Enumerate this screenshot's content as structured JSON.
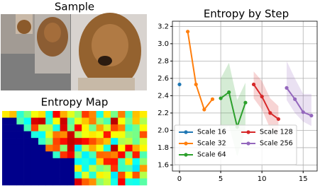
{
  "sample": {
    "title": "Sample"
  },
  "entropy_map": {
    "title": "Entropy Map"
  },
  "chart_data": {
    "type": "line",
    "title": "Entropy by Step",
    "xlim": [
      -0.86,
      16.7
    ],
    "xticks": [
      0,
      5,
      10,
      15
    ],
    "ylim": [
      1.53,
      3.26
    ],
    "yticks": [
      1.6,
      1.8,
      {
        "value": 2,
        "label": "2.0"
      },
      2.2,
      2.4,
      2.6,
      2.8,
      {
        "value": 3,
        "label": "3.0"
      },
      3.2
    ],
    "grid": true,
    "legend": "lower center",
    "series": [
      {
        "name": "Scale 16",
        "color": "#1f77b4",
        "x": [
          0
        ],
        "values": [
          2.53
        ]
      },
      {
        "name": "Scale 32",
        "color": "#ff7f0e",
        "x": [
          1,
          2,
          3,
          4
        ],
        "values": [
          3.14,
          2.53,
          2.24,
          2.36
        ]
      },
      {
        "name": "Scale 64",
        "color": "#2ca02c",
        "x": [
          5,
          6,
          7,
          8
        ],
        "values": [
          2.37,
          2.44,
          2.04,
          2.32
        ],
        "lower": [
          2.0,
          2.05,
          1.7,
          2.0
        ],
        "upper": [
          2.6,
          2.78,
          2.35,
          2.55
        ]
      },
      {
        "name": "Scale 128",
        "color": "#d62728",
        "x": [
          9,
          10,
          11,
          12
        ],
        "values": [
          2.53,
          2.39,
          2.2,
          2.13
        ],
        "lower": [
          2.37,
          2.24,
          2.02,
          1.95
        ],
        "upper": [
          2.68,
          2.57,
          2.37,
          2.28
        ]
      },
      {
        "name": "Scale 256",
        "color": "#9467bd",
        "x": [
          13,
          14,
          15,
          16
        ],
        "values": [
          2.49,
          2.36,
          2.21,
          2.17
        ],
        "lower": [
          2.35,
          2.2,
          2.1,
          2.05
        ],
        "upper": [
          2.8,
          2.6,
          2.42,
          2.42
        ]
      }
    ]
  }
}
